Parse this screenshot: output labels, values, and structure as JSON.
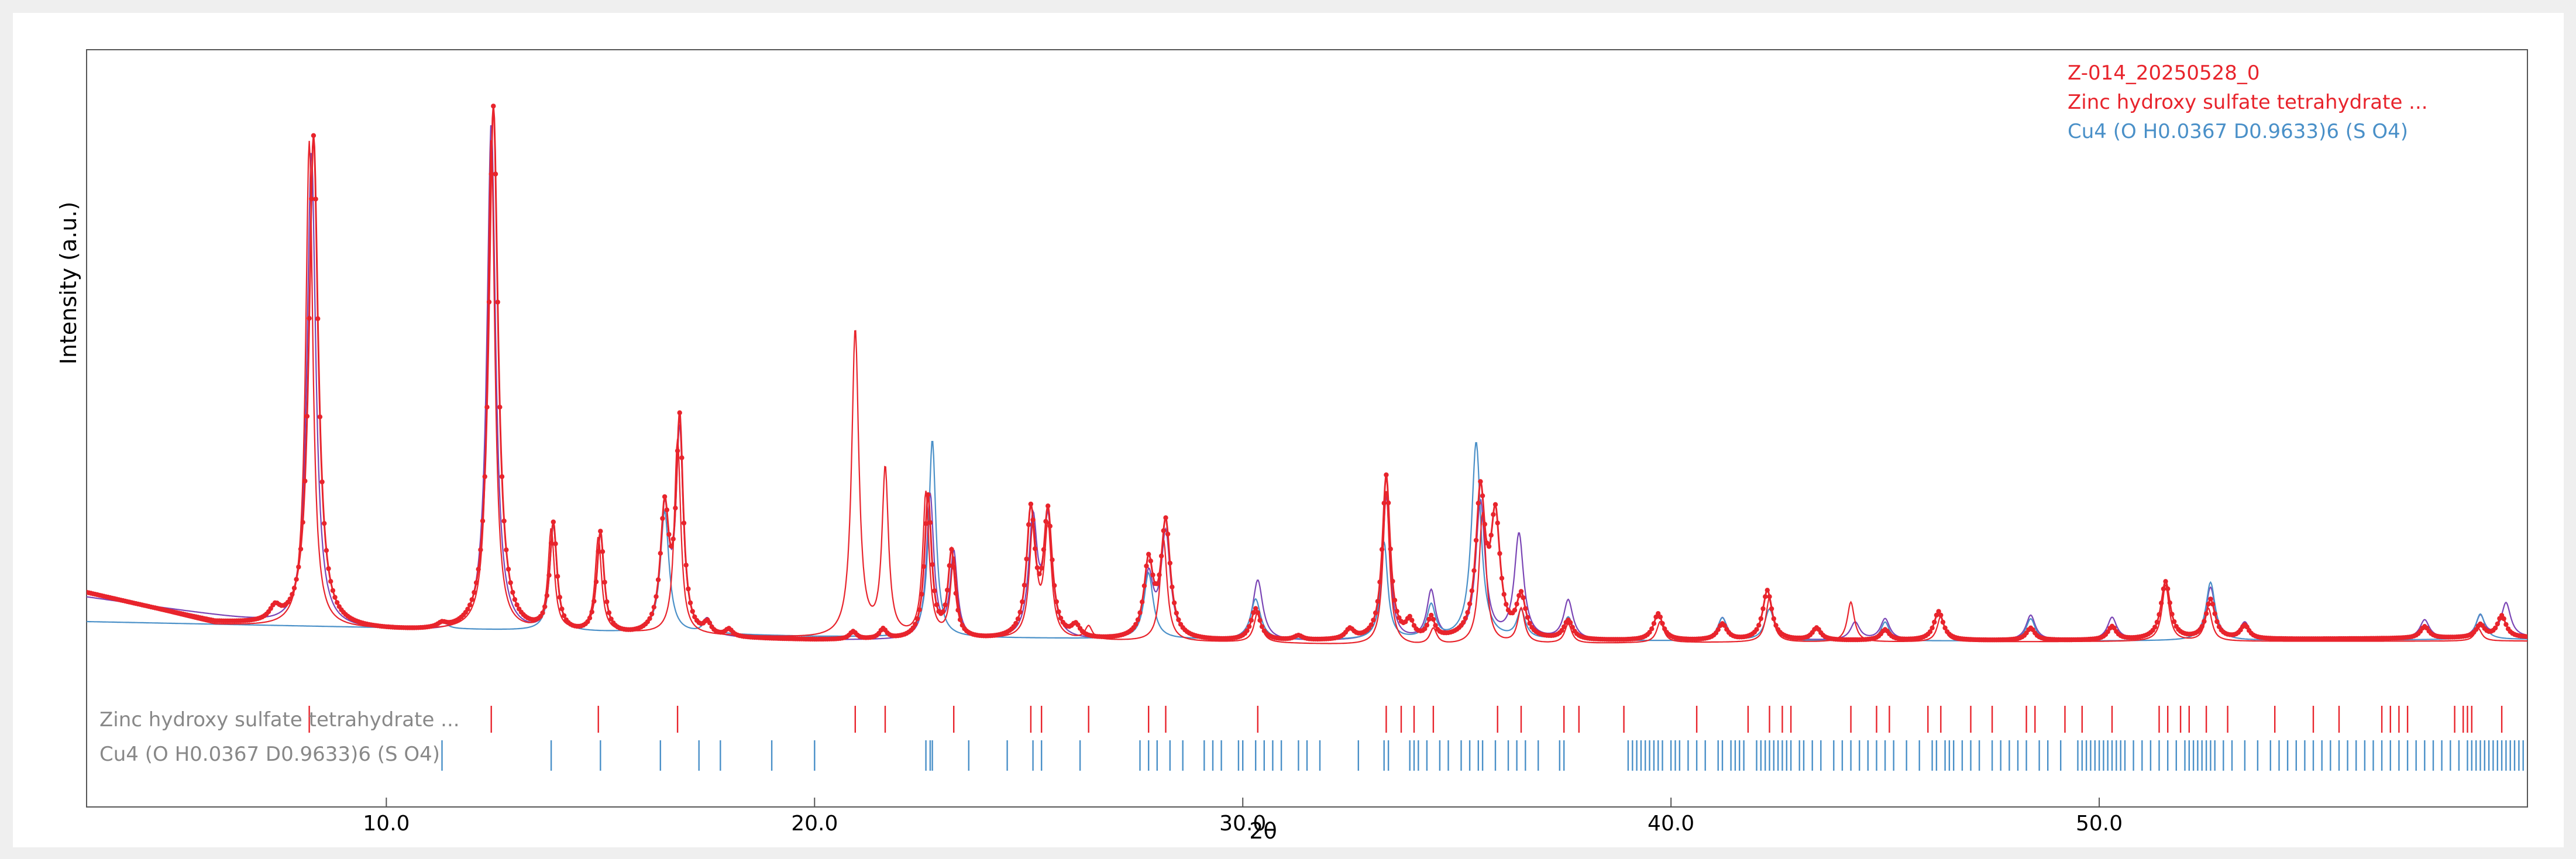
{
  "chart_data": {
    "type": "line",
    "xlabel": "2θ",
    "ylabel": "Intensity (a.u.)",
    "xlim": [
      3.0,
      60.0
    ],
    "ylim": [
      0,
      100
    ],
    "xticks": [
      10,
      20,
      30,
      40,
      50
    ],
    "xtick_labels": [
      "10.0",
      "20.0",
      "30.0",
      "40.0",
      "50.0"
    ],
    "legend_position": "top-right",
    "legend": [
      {
        "label": "Z-014_20250528_0",
        "color": "#e8242c"
      },
      {
        "label": "Zinc hydroxy sulfate tetrahydrate ...",
        "color": "#e8242c"
      },
      {
        "label": "Cu4 (O H0.0367 D0.9633)6 (S O4)",
        "color": "#4a90c8"
      }
    ],
    "series": [
      {
        "name": "Z-014_20250528_0",
        "color": "#e8242c",
        "style": "points+line",
        "baseline": [
          [
            3.0,
            9.3
          ],
          [
            6.0,
            3.9
          ],
          [
            8.0,
            2.9
          ],
          [
            12.0,
            1.8
          ],
          [
            16.0,
            1.2
          ],
          [
            20.0,
            0.7
          ],
          [
            30.0,
            0.5
          ],
          [
            40.0,
            0.6
          ],
          [
            50.0,
            0.7
          ],
          [
            60.0,
            1.2
          ]
        ],
        "peaks": [
          [
            7.4,
            2.4,
            0.15
          ],
          [
            8.3,
            88.6,
            0.13
          ],
          [
            11.3,
            0.8,
            0.13
          ],
          [
            12.5,
            94.9,
            0.13
          ],
          [
            13.9,
            19.4,
            0.1
          ],
          [
            15.0,
            18.3,
            0.1
          ],
          [
            16.5,
            22.3,
            0.12
          ],
          [
            16.85,
            38.0,
            0.1
          ],
          [
            17.5,
            2.0,
            0.1
          ],
          [
            18.0,
            1.3,
            0.1
          ],
          [
            20.9,
            1.4,
            0.1
          ],
          [
            21.6,
            1.8,
            0.1
          ],
          [
            22.65,
            25.6,
            0.1
          ],
          [
            23.2,
            15.4,
            0.1
          ],
          [
            25.05,
            22.6,
            0.12
          ],
          [
            25.45,
            22.2,
            0.12
          ],
          [
            26.1,
            2.1,
            0.12
          ],
          [
            27.8,
            13.5,
            0.13
          ],
          [
            28.2,
            20.8,
            0.13
          ],
          [
            30.3,
            5.7,
            0.13
          ],
          [
            31.3,
            0.8,
            0.12
          ],
          [
            32.5,
            1.8,
            0.12
          ],
          [
            33.35,
            29.6,
            0.11
          ],
          [
            33.9,
            2.9,
            0.1
          ],
          [
            34.4,
            3.7,
            0.1
          ],
          [
            35.55,
            25.9,
            0.13
          ],
          [
            35.9,
            21.0,
            0.13
          ],
          [
            36.5,
            7.4,
            0.13
          ],
          [
            37.6,
            3.4,
            0.13
          ],
          [
            39.7,
            4.8,
            0.13
          ],
          [
            41.2,
            2.9,
            0.13
          ],
          [
            42.25,
            9.0,
            0.13
          ],
          [
            43.4,
            2.2,
            0.12
          ],
          [
            45.0,
            1.9,
            0.12
          ],
          [
            46.25,
            5.2,
            0.13
          ],
          [
            48.4,
            2.2,
            0.12
          ],
          [
            50.3,
            2.4,
            0.12
          ],
          [
            51.55,
            10.4,
            0.13
          ],
          [
            52.6,
            7.1,
            0.13
          ],
          [
            53.4,
            2.4,
            0.12
          ],
          [
            57.6,
            2.1,
            0.12
          ],
          [
            58.9,
            2.3,
            0.12
          ],
          [
            59.4,
            3.9,
            0.12
          ]
        ]
      },
      {
        "name": "Zinc hydroxy sulfate tetrahydrate ...",
        "color": "#e8242c",
        "style": "line",
        "baseline": [
          [
            3.0,
            9.3
          ],
          [
            6.0,
            3.5
          ],
          [
            8.0,
            2.9
          ],
          [
            12.0,
            2.3
          ],
          [
            16.0,
            1.8
          ],
          [
            20.0,
            1.0
          ],
          [
            30.0,
            0.3
          ],
          [
            34.0,
            -0.4
          ],
          [
            37.0,
            0.0
          ],
          [
            40.0,
            0.3
          ],
          [
            50.0,
            0.5
          ],
          [
            60.0,
            0.6
          ]
        ],
        "peaks": [
          [
            8.2,
            87.7,
            0.1
          ],
          [
            12.45,
            89.1,
            0.1
          ],
          [
            13.85,
            18.3,
            0.09
          ],
          [
            14.95,
            17.1,
            0.09
          ],
          [
            16.8,
            35.2,
            0.09
          ],
          [
            20.95,
            55.4,
            0.1
          ],
          [
            21.65,
            30.0,
            0.09
          ],
          [
            22.6,
            26.0,
            0.09
          ],
          [
            23.25,
            14.3,
            0.09
          ],
          [
            25.1,
            20.0,
            0.1
          ],
          [
            25.45,
            20.0,
            0.1
          ],
          [
            26.4,
            2.4,
            0.1
          ],
          [
            28.15,
            18.3,
            0.1
          ],
          [
            30.35,
            5.6,
            0.1
          ],
          [
            33.35,
            28.0,
            0.09
          ],
          [
            34.45,
            2.9,
            0.1
          ],
          [
            35.6,
            23.8,
            0.1
          ],
          [
            36.5,
            6.3,
            0.1
          ],
          [
            37.6,
            3.5,
            0.1
          ],
          [
            39.75,
            3.8,
            0.1
          ],
          [
            42.3,
            8.0,
            0.1
          ],
          [
            44.2,
            7.2,
            0.1
          ],
          [
            46.3,
            4.6,
            0.1
          ],
          [
            51.55,
            10.2,
            0.1
          ],
          [
            52.55,
            5.9,
            0.1
          ],
          [
            58.85,
            2.3,
            0.1
          ]
        ]
      },
      {
        "name": "Cu4 (O H0.0367 D0.9633)6 (S O4)",
        "color": "#4a90c8",
        "style": "line",
        "baseline": [
          [
            3.0,
            4.1
          ],
          [
            10.0,
            3.0
          ],
          [
            20.0,
            1.4
          ],
          [
            30.0,
            0.8
          ],
          [
            40.0,
            0.6
          ],
          [
            50.0,
            0.6
          ],
          [
            60.0,
            0.9
          ]
        ],
        "peaks": [
          [
            11.3,
            1.6,
            0.12
          ],
          [
            13.9,
            19.0,
            0.1
          ],
          [
            16.5,
            22.0,
            0.12
          ],
          [
            17.5,
            2.5,
            0.12
          ],
          [
            22.75,
            35.6,
            0.1
          ],
          [
            27.8,
            11.9,
            0.13
          ],
          [
            30.3,
            7.3,
            0.14
          ],
          [
            33.3,
            17.5,
            0.1
          ],
          [
            34.4,
            6.0,
            0.12
          ],
          [
            35.45,
            35.6,
            0.13
          ],
          [
            36.5,
            5.0,
            0.12
          ],
          [
            37.6,
            4.1,
            0.13
          ],
          [
            41.2,
            4.1,
            0.13
          ],
          [
            42.3,
            5.7,
            0.13
          ],
          [
            45.0,
            3.4,
            0.12
          ],
          [
            48.4,
            4.0,
            0.13
          ],
          [
            52.6,
            10.5,
            0.13
          ],
          [
            58.9,
            4.6,
            0.13
          ]
        ]
      },
      {
        "name": "",
        "color": "#7a45b5",
        "style": "line",
        "baseline": [
          [
            3.0,
            8.5
          ],
          [
            8.0,
            2.9
          ],
          [
            12.0,
            1.8
          ],
          [
            20.0,
            0.7
          ],
          [
            30.0,
            0.5
          ],
          [
            40.0,
            0.6
          ],
          [
            50.0,
            0.7
          ],
          [
            60.0,
            1.2
          ]
        ],
        "peaks": [
          [
            8.25,
            86.0,
            0.12
          ],
          [
            12.45,
            92.0,
            0.12
          ],
          [
            13.9,
            19.0,
            0.1
          ],
          [
            15.0,
            17.8,
            0.1
          ],
          [
            16.5,
            22.0,
            0.12
          ],
          [
            16.85,
            36.0,
            0.1
          ],
          [
            17.5,
            2.5,
            0.12
          ],
          [
            22.7,
            26.0,
            0.1
          ],
          [
            23.25,
            15.4,
            0.1
          ],
          [
            25.1,
            21.0,
            0.12
          ],
          [
            25.45,
            21.0,
            0.12
          ],
          [
            27.8,
            11.2,
            0.13
          ],
          [
            28.2,
            19.0,
            0.13
          ],
          [
            30.35,
            10.9,
            0.14
          ],
          [
            33.35,
            26.0,
            0.1
          ],
          [
            34.4,
            8.7,
            0.12
          ],
          [
            35.55,
            25.0,
            0.13
          ],
          [
            36.45,
            18.9,
            0.13
          ],
          [
            37.6,
            7.1,
            0.13
          ],
          [
            39.7,
            4.8,
            0.13
          ],
          [
            41.2,
            4.0,
            0.13
          ],
          [
            42.25,
            9.0,
            0.13
          ],
          [
            44.3,
            3.2,
            0.13
          ],
          [
            45.0,
            3.8,
            0.13
          ],
          [
            46.25,
            5.0,
            0.13
          ],
          [
            48.4,
            4.5,
            0.13
          ],
          [
            50.3,
            4.0,
            0.13
          ],
          [
            51.55,
            10.2,
            0.13
          ],
          [
            52.6,
            9.2,
            0.13
          ],
          [
            53.4,
            2.9,
            0.13
          ],
          [
            57.6,
            3.3,
            0.13
          ],
          [
            58.9,
            3.9,
            0.12
          ],
          [
            59.5,
            6.2,
            0.13
          ]
        ]
      }
    ],
    "reference_markers": [
      {
        "label": "Zinc hydroxy sulfate tetrahydrate ...",
        "color": "#e8242c",
        "positions": [
          8.2,
          12.45,
          14.95,
          16.8,
          20.95,
          21.65,
          23.25,
          25.05,
          25.3,
          26.4,
          27.8,
          28.2,
          30.35,
          33.35,
          33.7,
          34.0,
          34.45,
          35.95,
          36.5,
          37.5,
          37.85,
          38.9,
          40.6,
          41.8,
          42.3,
          42.6,
          42.8,
          44.2,
          44.8,
          45.1,
          46.0,
          46.3,
          47.0,
          47.5,
          48.3,
          48.5,
          49.2,
          49.6,
          50.3,
          51.4,
          51.6,
          51.9,
          52.1,
          52.5,
          53.0,
          54.1,
          55.0,
          55.6,
          56.6,
          56.8,
          57.0,
          57.2,
          58.3,
          58.5,
          58.6,
          58.7,
          59.4
        ]
      },
      {
        "label": "Cu4 (O H0.0367 D0.9633)6 (S O4)",
        "color": "#4a90c8",
        "positions": [
          11.3,
          13.85,
          15.0,
          16.4,
          17.3,
          17.8,
          19.0,
          20.0,
          22.6,
          22.7,
          22.75,
          23.6,
          24.5,
          25.1,
          25.3,
          26.2,
          27.6,
          27.8,
          28.0,
          28.3,
          28.6,
          29.1,
          29.3,
          29.5,
          29.9,
          30.0,
          30.3,
          30.5,
          30.7,
          30.9,
          31.3,
          31.5,
          31.8,
          32.7,
          33.3,
          33.4,
          33.9,
          34.0,
          34.1,
          34.3,
          34.6,
          34.8,
          35.1,
          35.3,
          35.5,
          35.6,
          35.9,
          36.2,
          36.4,
          36.6,
          36.9,
          37.4,
          37.5,
          39.0,
          39.1,
          39.2,
          39.3,
          39.4,
          39.5,
          39.6,
          39.7,
          39.8,
          40.0,
          40.1,
          40.2,
          40.4,
          40.6,
          40.8,
          41.1,
          41.2,
          41.4,
          41.5,
          41.6,
          41.7,
          42.0,
          42.1,
          42.2,
          42.3,
          42.4,
          42.5,
          42.6,
          42.7,
          42.8,
          43.0,
          43.1,
          43.3,
          43.5,
          43.8,
          44.0,
          44.2,
          44.4,
          44.6,
          44.8,
          45.0,
          45.2,
          45.5,
          45.8,
          46.1,
          46.2,
          46.4,
          46.5,
          46.6,
          46.8,
          47.0,
          47.2,
          47.5,
          47.7,
          47.9,
          48.1,
          48.3,
          48.6,
          48.8,
          49.1,
          49.5,
          49.6,
          49.7,
          49.8,
          49.9,
          50.0,
          50.1,
          50.2,
          50.3,
          50.4,
          50.5,
          50.6,
          50.8,
          51.0,
          51.2,
          51.4,
          51.6,
          51.8,
          52.0,
          52.1,
          52.2,
          52.3,
          52.4,
          52.5,
          52.6,
          52.7,
          52.9,
          53.1,
          53.4,
          53.7,
          54.0,
          54.2,
          54.4,
          54.6,
          54.8,
          55.0,
          55.2,
          55.4,
          55.6,
          55.8,
          56.0,
          56.2,
          56.4,
          56.6,
          56.8,
          57.0,
          57.2,
          57.4,
          57.6,
          57.8,
          58.0,
          58.2,
          58.4,
          58.6,
          58.7,
          58.8,
          58.9,
          59.0,
          59.1,
          59.2,
          59.3,
          59.4,
          59.5,
          59.6,
          59.7,
          59.8,
          59.9
        ]
      }
    ]
  }
}
